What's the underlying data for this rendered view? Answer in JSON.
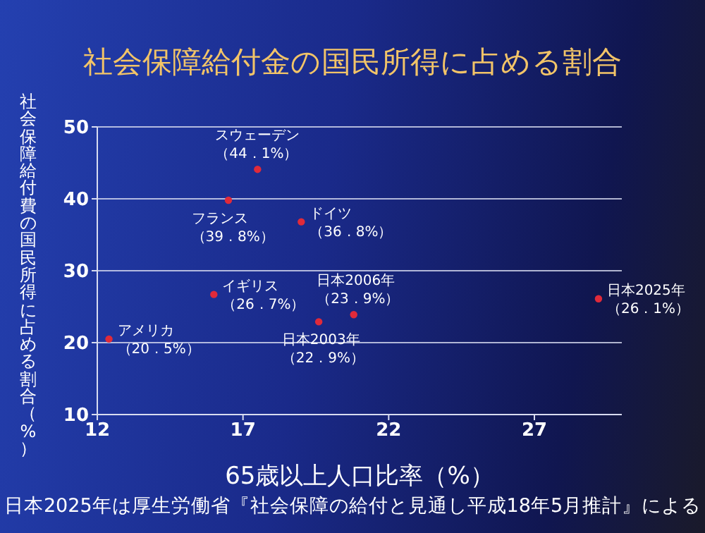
{
  "chart_data": {
    "type": "scatter",
    "title": "社会保障給付金の国民所得に占める割合",
    "xlabel": "65歳以上人口比率（%）",
    "ylabel": "社会保障給付費の国民所得に占める割合（%）",
    "annotations": [
      "日本2025年は厚生労働省『社会保障の給付と見通し平成18年5月推計』による"
    ],
    "xlim": [
      12,
      30
    ],
    "xticks": [
      12,
      17,
      22,
      27
    ],
    "ylim": [
      10,
      50
    ],
    "yticks": [
      10,
      20,
      30,
      40,
      50
    ],
    "grid": "y",
    "marker": "circle",
    "series": [
      {
        "name": "アメリカ",
        "color": "#e02a3a",
        "x": [
          12.4
        ],
        "values": [
          20.5
        ],
        "value_labels": [
          "（20．5%）"
        ]
      },
      {
        "name": "イギリス",
        "color": "#e02a3a",
        "x": [
          16.0
        ],
        "values": [
          26.7
        ],
        "value_labels": [
          "（26．7%）"
        ]
      },
      {
        "name": "フランス",
        "color": "#e02a3a",
        "x": [
          16.5
        ],
        "values": [
          39.8
        ],
        "value_labels": [
          "（39．8%）"
        ]
      },
      {
        "name": "スウェーデン",
        "color": "#e02a3a",
        "x": [
          17.5
        ],
        "values": [
          44.1
        ],
        "value_labels": [
          "（44．1%）"
        ]
      },
      {
        "name": "ドイツ",
        "color": "#e02a3a",
        "x": [
          19.0
        ],
        "values": [
          36.8
        ],
        "value_labels": [
          "（36．8%）"
        ]
      },
      {
        "name": "日本2003年",
        "color": "#e02a3a",
        "x": [
          19.6
        ],
        "values": [
          22.9
        ],
        "value_labels": [
          "（22．9%）"
        ]
      },
      {
        "name": "日本2006年",
        "color": "#e02a3a",
        "x": [
          20.8
        ],
        "values": [
          23.9
        ],
        "value_labels": [
          "（23．9%）"
        ]
      },
      {
        "name": "日本2025年",
        "color": "#e02a3a",
        "x": [
          29.2
        ],
        "values": [
          26.1
        ],
        "value_labels": [
          "（26．1%）"
        ]
      }
    ]
  }
}
